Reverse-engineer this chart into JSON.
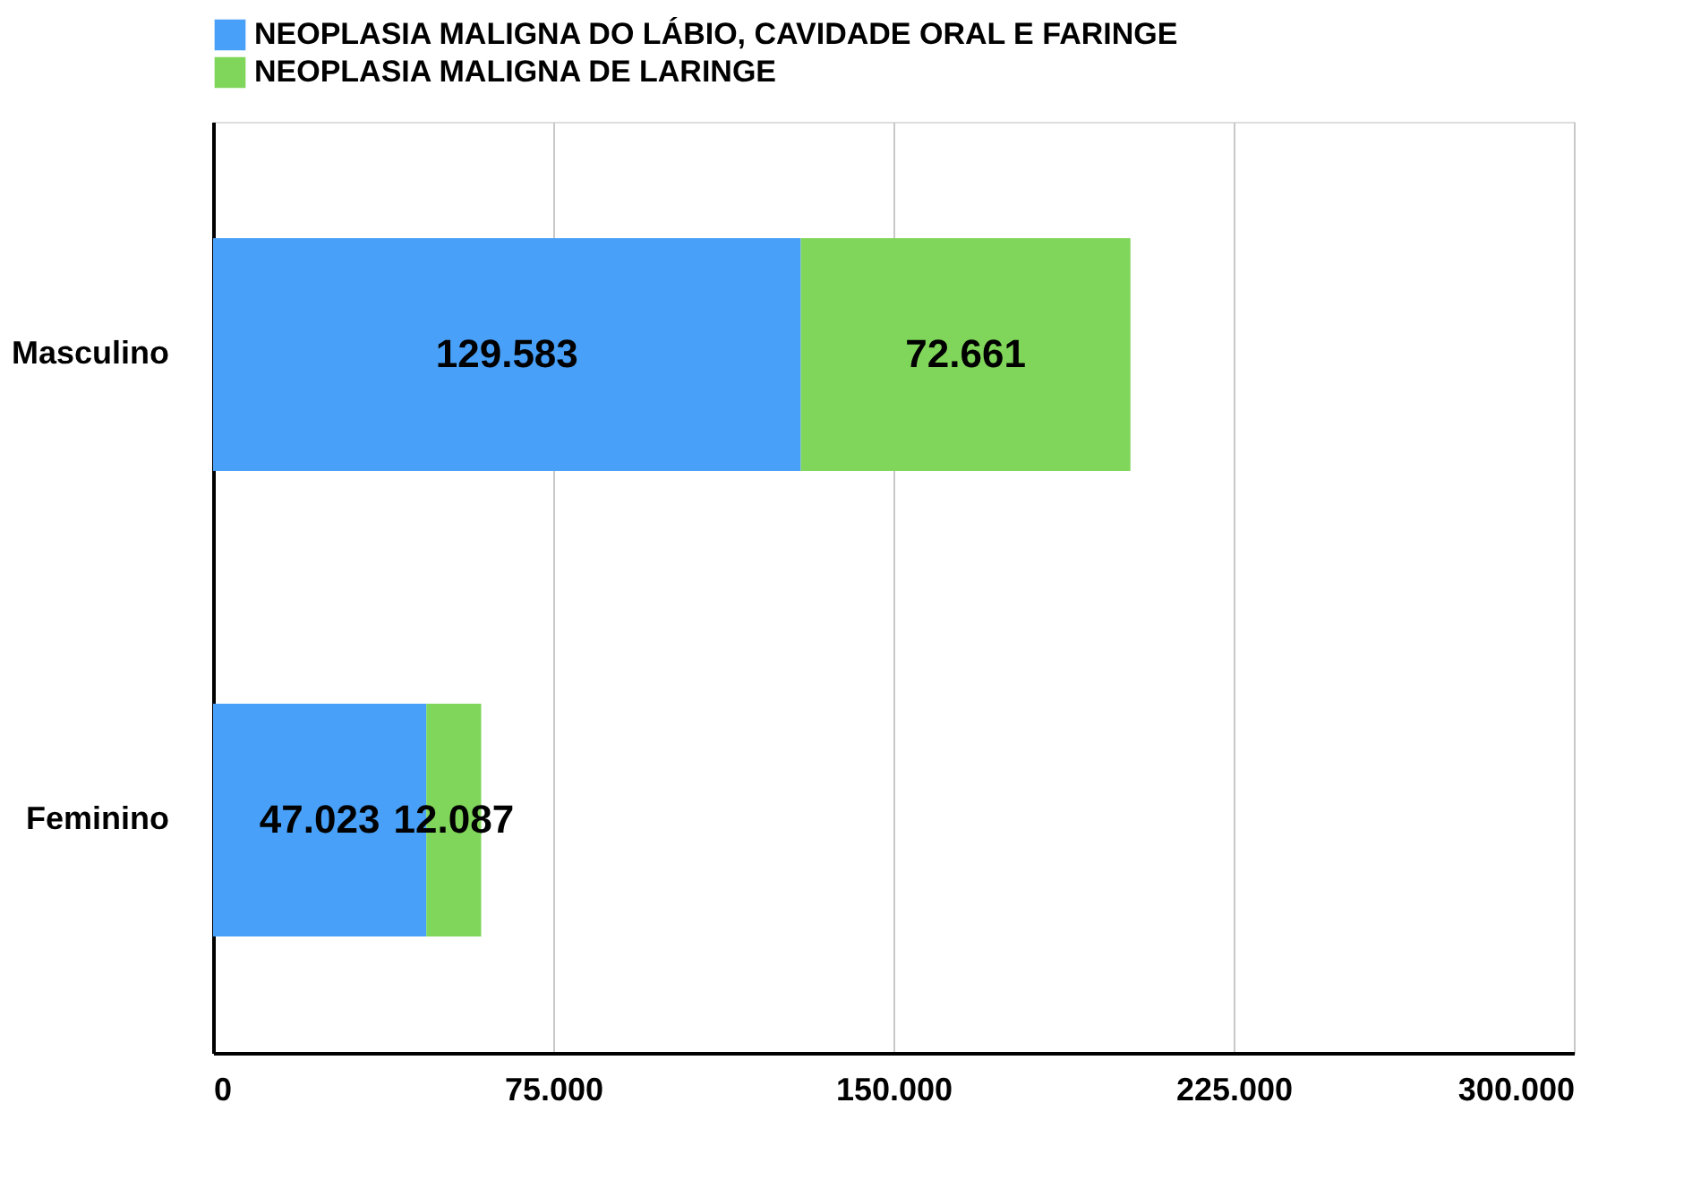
{
  "chart_data": {
    "type": "bar",
    "orientation": "horizontal",
    "stacked": true,
    "categories": [
      "Masculino",
      "Feminino"
    ],
    "series": [
      {
        "name": "NEOPLASIA MALIGNA DO LÁBIO, CAVIDADE ORAL E FARINGE",
        "color": "#48a0f8",
        "values": [
          129583,
          47023
        ],
        "value_labels": [
          "129.583",
          "47.023"
        ]
      },
      {
        "name": "NEOPLASIA MALIGNA DE LARINGE",
        "color": "#80d65a",
        "values": [
          72661,
          12087
        ],
        "value_labels": [
          "72.661",
          "12.087"
        ]
      }
    ],
    "xlim": [
      0,
      300000
    ],
    "xticks": [
      {
        "value": 0,
        "label": "0"
      },
      {
        "value": 75000,
        "label": "75.000"
      },
      {
        "value": 150000,
        "label": "150.000"
      },
      {
        "value": 225000,
        "label": "225.000"
      },
      {
        "value": 300000,
        "label": "300.000"
      }
    ],
    "grid": "x",
    "legend": "top"
  }
}
